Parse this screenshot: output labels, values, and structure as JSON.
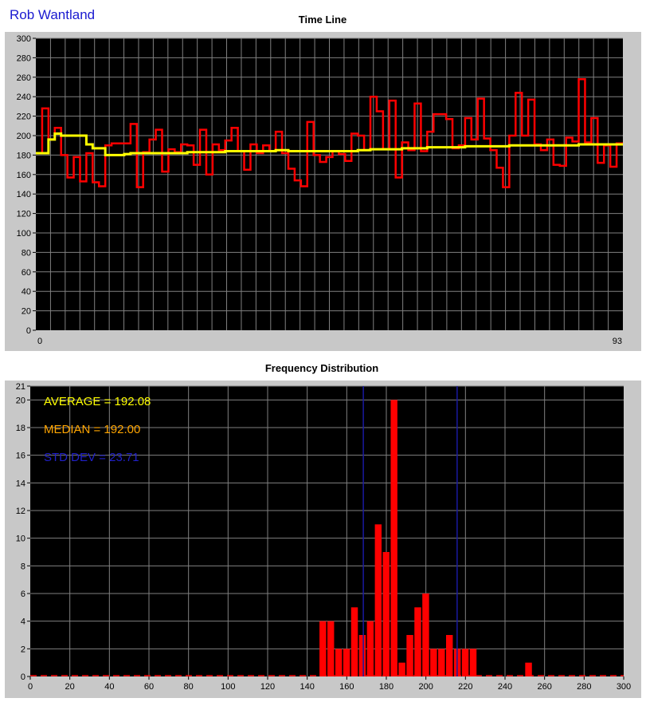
{
  "header": {
    "owner": "Rob Wantland"
  },
  "charts": {
    "timeline": {
      "title": "Time Line",
      "xmin_label": "0",
      "xmax_label": "93"
    },
    "freq": {
      "title": "Frequency Distribution",
      "average_text": "AVERAGE = 192.08",
      "median_text": "MEDIAN = 192.00",
      "stddev_text": "STD DEV = 23.71"
    }
  },
  "colors": {
    "plot_bg": "#000000",
    "grid": "#808080",
    "frame": "#c8c8c8",
    "raw_series": "#ff0000",
    "avg_series": "#ffff00",
    "bars": "#ff0000",
    "stddev_lines": "#1a1aa0",
    "average_text": "#ffff00",
    "median_text": "#ffa500",
    "stddev_text": "#2020c8"
  },
  "chart_data": [
    {
      "type": "line",
      "title": "Time Line",
      "xlim": [
        0,
        93
      ],
      "ylim": [
        0,
        300
      ],
      "y_ticks": [
        0,
        20,
        40,
        60,
        80,
        100,
        120,
        140,
        160,
        180,
        200,
        220,
        240,
        260,
        280,
        300
      ],
      "grid": true,
      "series": [
        {
          "values": [
            182,
            228,
            196,
            208,
            180,
            157,
            178,
            153,
            182,
            152,
            148,
            190,
            192,
            192,
            192,
            212,
            147,
            183,
            196,
            206,
            163,
            186,
            183,
            191,
            190,
            170,
            206,
            160,
            191,
            185,
            195,
            208,
            184,
            165,
            191,
            182,
            190,
            184,
            204,
            182,
            166,
            154,
            148,
            214,
            180,
            173,
            178,
            184,
            181,
            174,
            202,
            200,
            185,
            240,
            225,
            186,
            236,
            157,
            193,
            185,
            233,
            184,
            204,
            222,
            222,
            217,
            187,
            190,
            218,
            196,
            238,
            197,
            185,
            167,
            147,
            200,
            244,
            200,
            237,
            191,
            185,
            196,
            170,
            169,
            198,
            194,
            258,
            193,
            218,
            172,
            190,
            168,
            192,
            192
          ]
        },
        {
          "values": [
            182,
            182,
            196,
            202,
            200,
            200,
            200,
            200,
            191,
            187,
            187,
            180,
            180,
            180,
            181,
            182,
            182,
            182,
            182,
            182,
            182,
            182,
            182,
            182,
            183,
            183,
            183,
            183,
            183,
            183,
            184,
            184,
            184,
            184,
            184,
            184,
            184,
            184,
            185,
            185,
            184,
            184,
            184,
            184,
            184,
            184,
            184,
            184,
            184,
            184,
            184,
            185,
            185,
            186,
            186,
            186,
            186,
            186,
            187,
            187,
            187,
            187,
            188,
            188,
            188,
            188,
            188,
            188,
            189,
            189,
            189,
            189,
            189,
            189,
            189,
            190,
            190,
            190,
            190,
            190,
            190,
            190,
            190,
            190,
            190,
            190,
            191,
            191,
            191,
            191,
            191,
            191,
            191,
            191
          ]
        }
      ]
    },
    {
      "type": "bar",
      "title": "Frequency Distribution",
      "xlim": [
        0,
        300
      ],
      "ylim": [
        0,
        21
      ],
      "x_ticks": [
        0,
        20,
        40,
        60,
        80,
        100,
        120,
        140,
        160,
        180,
        200,
        220,
        240,
        260,
        280,
        300
      ],
      "y_ticks": [
        0,
        2,
        4,
        6,
        8,
        10,
        12,
        14,
        16,
        18,
        20,
        21
      ],
      "grid": true,
      "bin_width": 4,
      "x": [
        148,
        152,
        156,
        160,
        164,
        168,
        172,
        176,
        180,
        184,
        188,
        192,
        196,
        200,
        204,
        208,
        212,
        216,
        220,
        224,
        228,
        232,
        236,
        240,
        244,
        248,
        252,
        256,
        260
      ],
      "values": [
        4,
        4,
        2,
        2,
        5,
        3,
        4,
        11,
        9,
        20,
        1,
        3,
        5,
        6,
        2,
        2,
        3,
        2,
        2,
        2,
        0,
        0,
        0,
        0,
        0,
        0,
        1,
        0,
        0
      ],
      "average": 192.08,
      "median": 192.0,
      "std_dev": 23.71,
      "std_dev_lines": [
        168.37,
        215.79
      ]
    }
  ]
}
